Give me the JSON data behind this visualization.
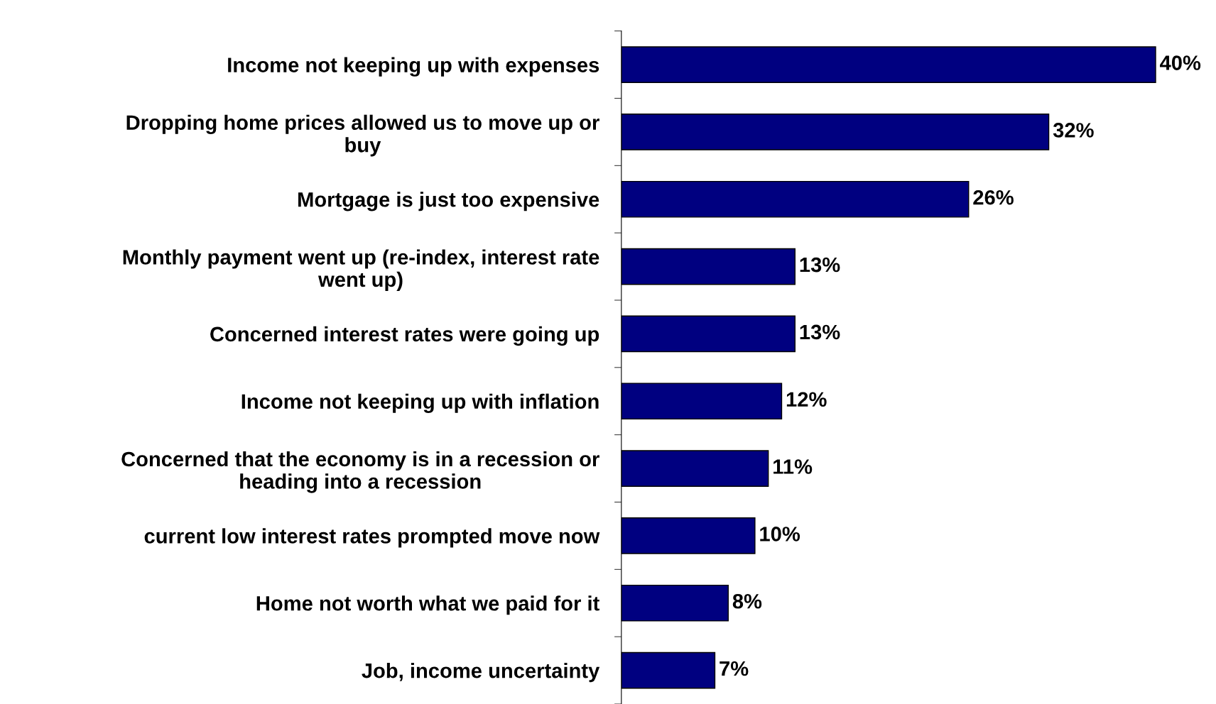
{
  "chart_data": {
    "type": "bar",
    "orientation": "horizontal",
    "categories": [
      "Income not keeping up with expenses",
      "Dropping home prices allowed us to move up or\nbuy",
      "Mortgage is just too expensive",
      "Monthly payment went up (re-index, interest rate\nwent up)",
      "Concerned interest rates were going up",
      "Income not keeping up with inflation",
      "Concerned that the economy is in a recession or\nheading into a recession",
      "current low interest rates prompted move now",
      "Home not worth what we paid for it",
      "Job, income uncertainty"
    ],
    "values": [
      40,
      32,
      26,
      13,
      13,
      12,
      11,
      10,
      8,
      7
    ],
    "value_labels": [
      "40%",
      "32%",
      "26%",
      "13%",
      "13%",
      "12%",
      "11%",
      "10%",
      "8%",
      "7%"
    ],
    "color": "#000080"
  }
}
